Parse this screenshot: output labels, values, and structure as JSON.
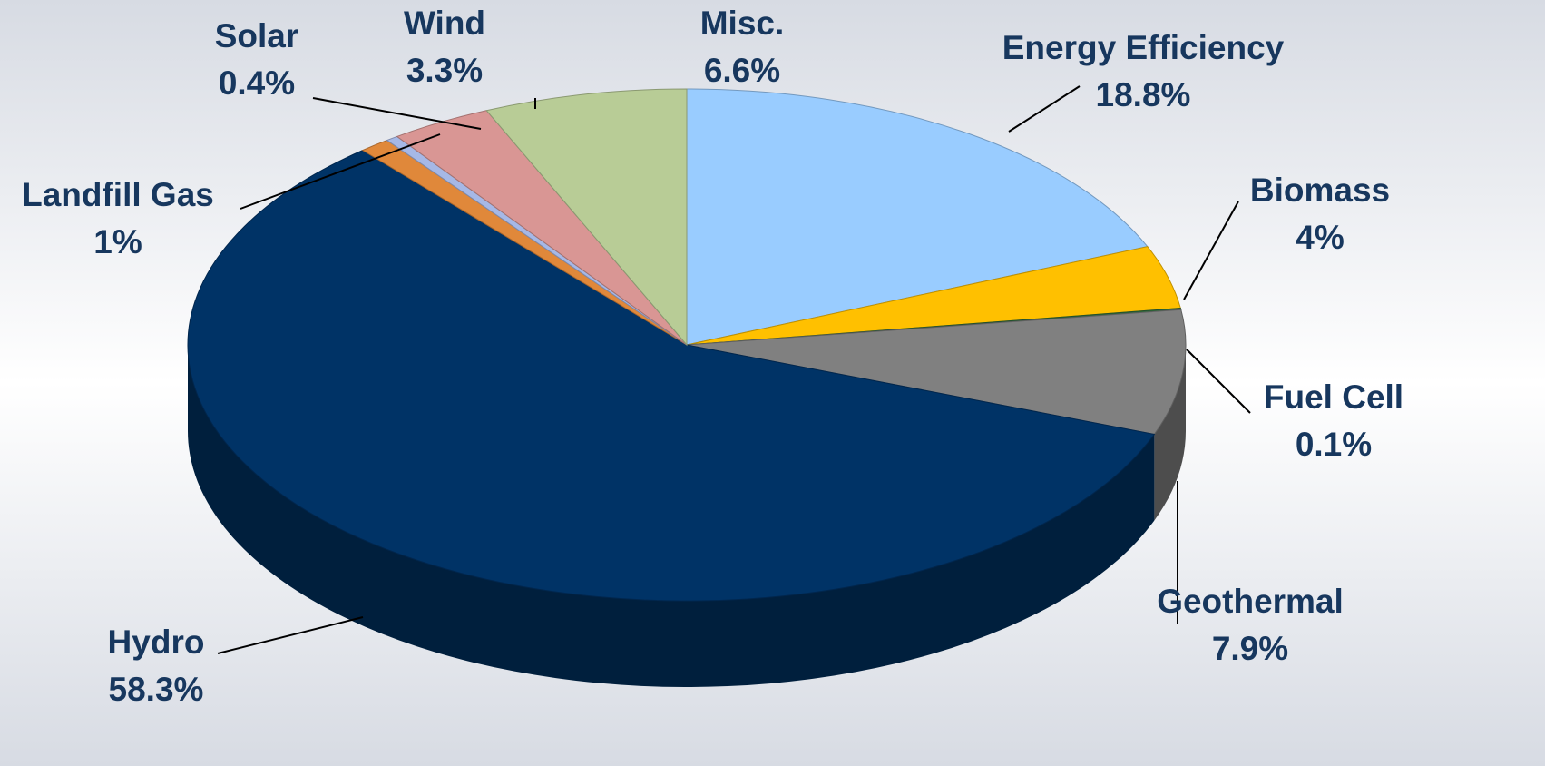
{
  "chart_data": {
    "type": "pie",
    "categories": [
      "Energy Efficiency",
      "Biomass",
      "Fuel Cell",
      "Geothermal",
      "Hydro",
      "Landfill Gas",
      "Solar",
      "Wind",
      "Misc."
    ],
    "values": [
      18.8,
      4,
      0.1,
      7.9,
      58.3,
      1,
      0.4,
      3.3,
      6.6
    ],
    "value_labels": [
      "18.8%",
      "4%",
      "0.1%",
      "7.9%",
      "58.3%",
      "1%",
      "0.4%",
      "3.3%",
      "6.6%"
    ],
    "colors": [
      "#99ccff",
      "#ffc000",
      "#2e6b3a",
      "#808080",
      "#003366",
      "#e0883a",
      "#a6b8e6",
      "#d99694",
      "#b8cc96"
    ],
    "three_d": true
  }
}
